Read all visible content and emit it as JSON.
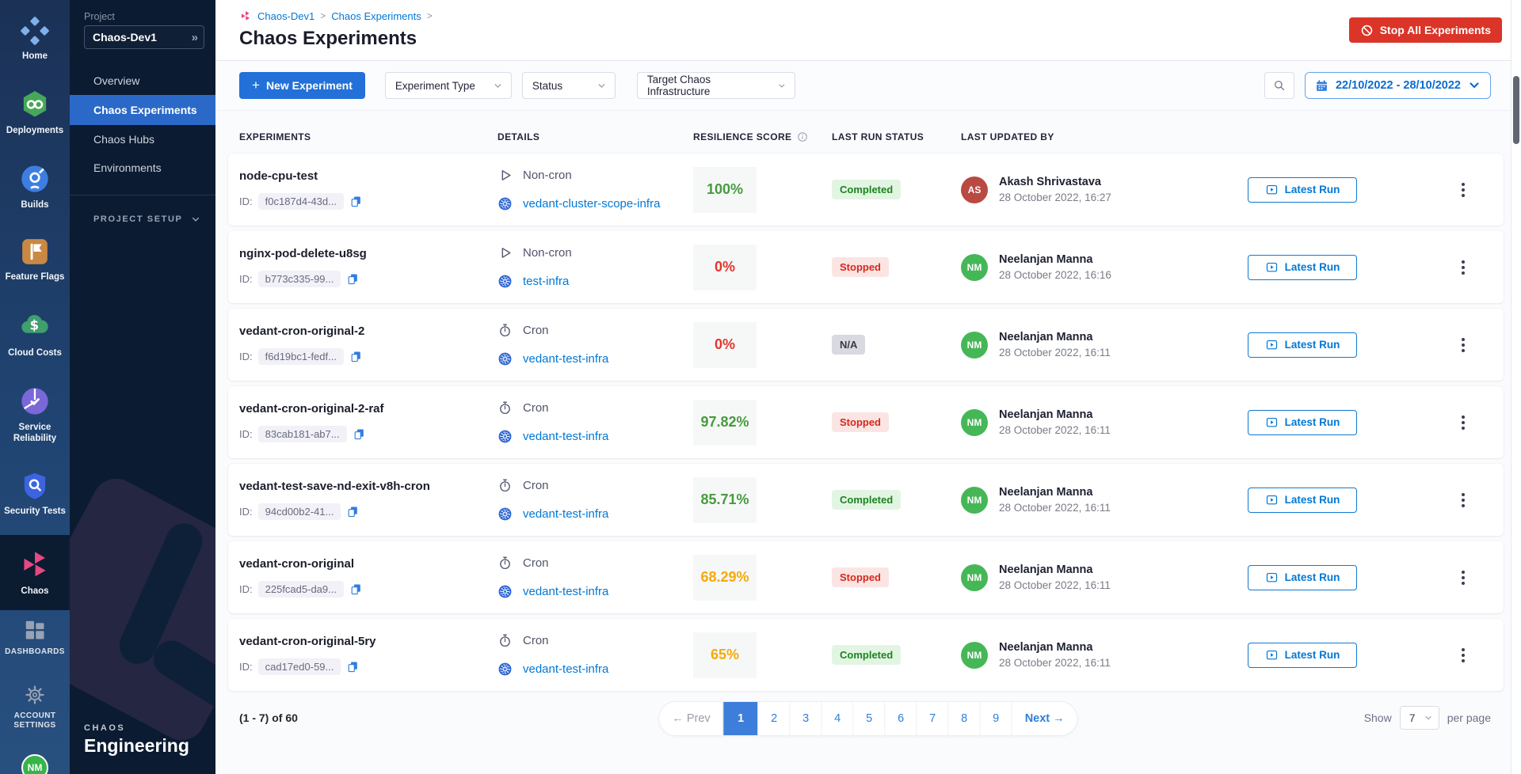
{
  "nav_rail": {
    "items": [
      {
        "label": "Home",
        "icon": "home-icon",
        "active": false
      },
      {
        "label": "Deployments",
        "icon": "deployments-icon",
        "active": false
      },
      {
        "label": "Builds",
        "icon": "builds-icon",
        "active": false
      },
      {
        "label": "Feature Flags",
        "icon": "feature-flags-icon",
        "active": false
      },
      {
        "label": "Cloud Costs",
        "icon": "cloud-costs-icon",
        "active": false
      },
      {
        "label": "Service Reliability",
        "icon": "service-reliability-icon",
        "active": false
      },
      {
        "label": "Security Tests",
        "icon": "security-tests-icon",
        "active": false
      },
      {
        "label": "Chaos",
        "icon": "chaos-icon",
        "active": true
      }
    ],
    "bottom_items": [
      {
        "label": "DASHBOARDS",
        "icon": "dashboards-icon"
      },
      {
        "label": "ACCOUNT SETTINGS",
        "icon": "gear-icon"
      }
    ],
    "avatar_initials": "NM",
    "avatar_color": "#36b44a"
  },
  "project_nav": {
    "project_label": "Project",
    "project_name": "Chaos-Dev1",
    "expand_glyph": "»",
    "items": [
      {
        "label": "Overview",
        "active": false
      },
      {
        "label": "Chaos Experiments",
        "active": true
      },
      {
        "label": "Chaos Hubs",
        "active": false
      },
      {
        "label": "Environments",
        "active": false
      }
    ],
    "section_label": "PROJECT SETUP",
    "module_kicker": "CHAOS",
    "module_name": "Engineering"
  },
  "header": {
    "breadcrumbs": [
      "Chaos-Dev1",
      "Chaos Experiments"
    ],
    "crumb_separator": ">",
    "title": "Chaos Experiments",
    "stop_all_label": "Stop All Experiments"
  },
  "toolbar": {
    "new_experiment_label": "New Experiment",
    "new_experiment_plus": "+",
    "filters": [
      "Experiment Type",
      "Status",
      "Target Chaos Infrastructure"
    ],
    "date_range": "22/10/2022 - 28/10/2022"
  },
  "table": {
    "columns": [
      "EXPERIMENTS",
      "DETAILS",
      "RESILIENCE SCORE",
      "LAST RUN STATUS",
      "LAST UPDATED BY"
    ],
    "id_label": "ID:",
    "latest_run_label": "Latest Run",
    "status_colors": {
      "Completed": "#1b841d",
      "Stopped": "#d7271d",
      "N/A": "#383a47"
    },
    "rows": [
      {
        "name": "node-cpu-test",
        "id": "f0c187d4-43d...",
        "type": "Non-cron",
        "infra": "vedant-cluster-scope-infra",
        "score": "100%",
        "score_color": "#479b3e",
        "status": "Completed",
        "user": "Akash Shrivastava",
        "initials": "AS",
        "avatar_color": "#b94a42",
        "updated": "28 October 2022, 16:27"
      },
      {
        "name": "nginx-pod-delete-u8sg",
        "id": "b773c335-99...",
        "type": "Non-cron",
        "infra": "test-infra",
        "score": "0%",
        "score_color": "#e1362b",
        "status": "Stopped",
        "user": "Neelanjan Manna",
        "initials": "NM",
        "avatar_color": "#45b757",
        "updated": "28 October 2022, 16:16"
      },
      {
        "name": "vedant-cron-original-2",
        "id": "f6d19bc1-fedf...",
        "type": "Cron",
        "infra": "vedant-test-infra",
        "score": "0%",
        "score_color": "#e1362b",
        "status": "N/A",
        "user": "Neelanjan Manna",
        "initials": "NM",
        "avatar_color": "#45b757",
        "updated": "28 October 2022, 16:11"
      },
      {
        "name": "vedant-cron-original-2-raf",
        "id": "83cab181-ab7...",
        "type": "Cron",
        "infra": "vedant-test-infra",
        "score": "97.82%",
        "score_color": "#479b3e",
        "status": "Stopped",
        "user": "Neelanjan Manna",
        "initials": "NM",
        "avatar_color": "#45b757",
        "updated": "28 October 2022, 16:11"
      },
      {
        "name": "vedant-test-save-nd-exit-v8h-cron",
        "id": "94cd00b2-41...",
        "type": "Cron",
        "infra": "vedant-test-infra",
        "score": "85.71%",
        "score_color": "#479b3e",
        "status": "Completed",
        "user": "Neelanjan Manna",
        "initials": "NM",
        "avatar_color": "#45b757",
        "updated": "28 October 2022, 16:11"
      },
      {
        "name": "vedant-cron-original",
        "id": "225fcad5-da9...",
        "type": "Cron",
        "infra": "vedant-test-infra",
        "score": "68.29%",
        "score_color": "#f7a90b",
        "status": "Stopped",
        "user": "Neelanjan Manna",
        "initials": "NM",
        "avatar_color": "#45b757",
        "updated": "28 October 2022, 16:11"
      },
      {
        "name": "vedant-cron-original-5ry",
        "id": "cad17ed0-59...",
        "type": "Cron",
        "infra": "vedant-test-infra",
        "score": "65%",
        "score_color": "#f7a90b",
        "status": "Completed",
        "user": "Neelanjan Manna",
        "initials": "NM",
        "avatar_color": "#45b757",
        "updated": "28 October 2022, 16:11"
      }
    ]
  },
  "pagination": {
    "summary": "(1 - 7) of 60",
    "prev_label": "← Prev",
    "pages": [
      "1",
      "2",
      "3",
      "4",
      "5",
      "6",
      "7",
      "8",
      "9"
    ],
    "active_page": "1",
    "next_label": "Next →",
    "show_label": "Show",
    "page_size": "7",
    "per_page_label": "per page"
  },
  "colors": {
    "primary_blue": "#0278d5",
    "active_nav_blue": "#2b69c8",
    "danger_red": "#da3528",
    "chaos_pink": "#ee3d7f"
  }
}
